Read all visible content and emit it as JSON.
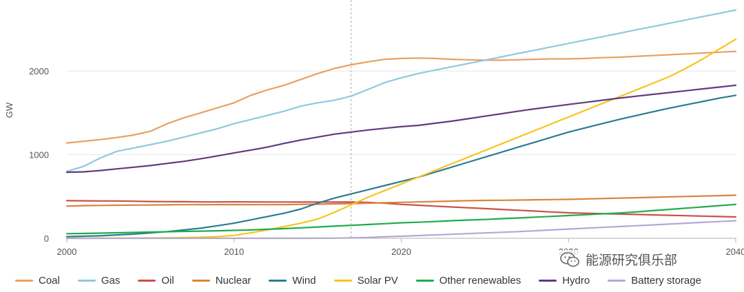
{
  "chart_data": {
    "type": "line",
    "ylabel": "GW",
    "xlabel": "",
    "xlim": [
      2000,
      2040
    ],
    "ylim": [
      0,
      2800
    ],
    "x_ticks": [
      2000,
      2010,
      2020,
      2030,
      2040
    ],
    "y_ticks": [
      0,
      1000,
      2000
    ],
    "marker_line_x": 2017,
    "grid": "horizontal",
    "legend_position": "bottom",
    "x": [
      2000,
      2001,
      2002,
      2003,
      2004,
      2005,
      2006,
      2007,
      2008,
      2009,
      2010,
      2011,
      2012,
      2013,
      2014,
      2015,
      2016,
      2017,
      2018,
      2019,
      2020,
      2021,
      2022,
      2023,
      2024,
      2025,
      2026,
      2027,
      2028,
      2029,
      2030,
      2031,
      2032,
      2033,
      2034,
      2035,
      2036,
      2037,
      2038,
      2039,
      2040
    ],
    "series": [
      {
        "name": "Coal",
        "color": "#e8a060",
        "values": [
          1140,
          1160,
          1180,
          1205,
          1235,
          1280,
          1370,
          1440,
          1500,
          1560,
          1620,
          1710,
          1775,
          1830,
          1900,
          1970,
          2030,
          2075,
          2110,
          2140,
          2150,
          2155,
          2150,
          2140,
          2135,
          2130,
          2130,
          2135,
          2140,
          2145,
          2145,
          2150,
          2160,
          2165,
          2175,
          2185,
          2195,
          2205,
          2215,
          2225,
          2235
        ]
      },
      {
        "name": "Gas",
        "color": "#8ec9de",
        "values": [
          800,
          860,
          960,
          1040,
          1080,
          1120,
          1160,
          1210,
          1260,
          1310,
          1370,
          1420,
          1470,
          1520,
          1580,
          1620,
          1650,
          1700,
          1780,
          1860,
          1920,
          1970,
          2010,
          2050,
          2090,
          2130,
          2170,
          2210,
          2250,
          2290,
          2330,
          2370,
          2410,
          2450,
          2490,
          2530,
          2570,
          2610,
          2650,
          2690,
          2730
        ]
      },
      {
        "name": "Oil",
        "color": "#c9514b",
        "values": [
          450,
          448,
          446,
          446,
          443,
          440,
          438,
          437,
          435,
          435,
          436,
          435,
          434,
          434,
          433,
          433,
          433,
          433,
          430,
          420,
          405,
          395,
          385,
          375,
          365,
          355,
          345,
          335,
          325,
          315,
          305,
          300,
          295,
          290,
          285,
          280,
          275,
          270,
          265,
          260,
          255
        ]
      },
      {
        "name": "Nuclear",
        "color": "#d7843e",
        "values": [
          385,
          390,
          393,
          395,
          397,
          398,
          400,
          402,
          402,
          403,
          403,
          402,
          402,
          403,
          405,
          408,
          412,
          415,
          420,
          425,
          430,
          435,
          440,
          445,
          450,
          453,
          455,
          457,
          460,
          463,
          465,
          470,
          475,
          480,
          485,
          490,
          495,
          500,
          505,
          510,
          515
        ]
      },
      {
        "name": "Wind",
        "color": "#2b7b94",
        "values": [
          20,
          25,
          30,
          40,
          50,
          65,
          80,
          100,
          120,
          150,
          180,
          220,
          260,
          300,
          350,
          420,
          480,
          530,
          580,
          630,
          680,
          730,
          790,
          850,
          910,
          970,
          1030,
          1090,
          1150,
          1210,
          1270,
          1320,
          1370,
          1420,
          1465,
          1510,
          1555,
          1595,
          1635,
          1675,
          1710
        ]
      },
      {
        "name": "Solar PV",
        "color": "#f7c51e",
        "values": [
          0,
          0,
          1,
          1,
          2,
          3,
          5,
          8,
          12,
          20,
          35,
          65,
          100,
          140,
          180,
          230,
          310,
          400,
          490,
          570,
          650,
          730,
          810,
          890,
          970,
          1050,
          1130,
          1210,
          1290,
          1370,
          1450,
          1530,
          1610,
          1690,
          1770,
          1850,
          1930,
          2030,
          2140,
          2260,
          2380
        ]
      },
      {
        "name": "Other renewables",
        "color": "#1eac4c",
        "values": [
          55,
          58,
          62,
          66,
          70,
          74,
          78,
          82,
          86,
          90,
          95,
          100,
          108,
          115,
          125,
          135,
          145,
          155,
          165,
          175,
          185,
          192,
          200,
          210,
          218,
          225,
          235,
          243,
          253,
          262,
          272,
          282,
          292,
          302,
          315,
          330,
          345,
          360,
          375,
          390,
          405
        ]
      },
      {
        "name": "Hydro",
        "color": "#5e3b7e",
        "values": [
          790,
          795,
          810,
          830,
          850,
          870,
          895,
          920,
          950,
          985,
          1020,
          1055,
          1090,
          1135,
          1175,
          1210,
          1245,
          1270,
          1295,
          1315,
          1335,
          1350,
          1375,
          1400,
          1430,
          1460,
          1490,
          1520,
          1548,
          1575,
          1600,
          1625,
          1650,
          1675,
          1698,
          1720,
          1742,
          1764,
          1786,
          1808,
          1830
        ]
      },
      {
        "name": "Battery storage",
        "color": "#b7a6d6",
        "values": [
          0,
          0,
          0,
          0,
          0,
          0,
          0,
          0,
          0,
          0,
          0,
          0,
          0,
          0,
          0,
          1,
          2,
          5,
          10,
          18,
          25,
          32,
          40,
          48,
          56,
          64,
          72,
          80,
          90,
          100,
          110,
          120,
          130,
          140,
          150,
          160,
          170,
          180,
          190,
          200,
          210
        ]
      }
    ]
  },
  "watermark": {
    "text": "能源研究俱乐部",
    "icon": "wechat-icon"
  }
}
